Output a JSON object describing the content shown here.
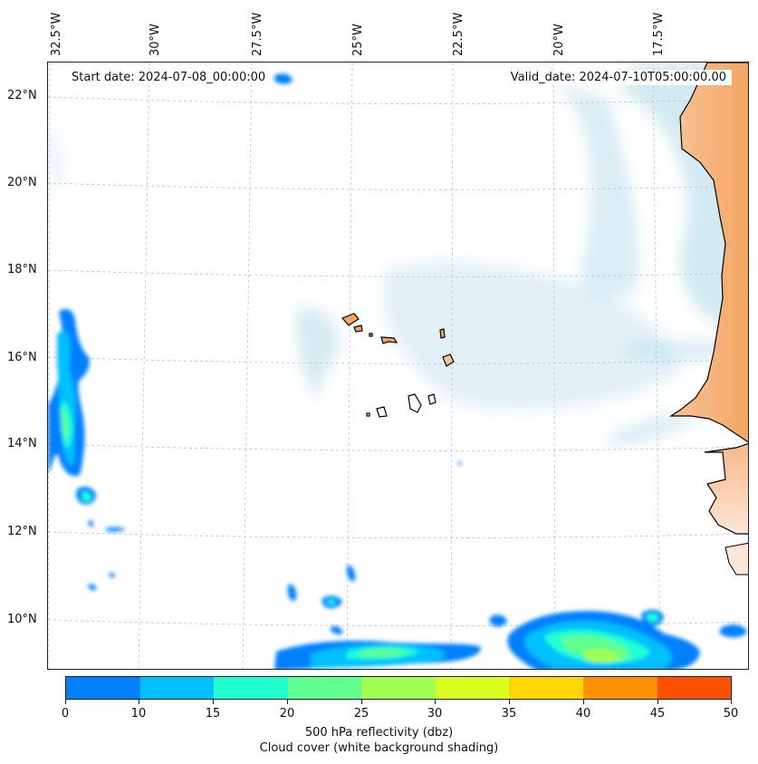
{
  "map": {
    "start_date_label": "Start date: 2024-07-08_00:00:00",
    "valid_date_label": "Valid_date: 2024-07-10T05:00:00.00",
    "longitude_labels": [
      "32.5°W",
      "30°W",
      "27.5°W",
      "25°W",
      "22.5°W",
      "20°W",
      "17.5°W"
    ],
    "latitude_labels": [
      "22°N",
      "20°N",
      "18°N",
      "16°N",
      "14°N",
      "12°N",
      "10°N"
    ],
    "colors": {
      "land": "#f4a460",
      "cloud": "#add8e6",
      "coastline": "#000000",
      "gridline": "#bbbbbb"
    }
  },
  "colorbar": {
    "ticks": [
      "0",
      "10",
      "15",
      "20",
      "25",
      "30",
      "35",
      "40",
      "45",
      "50"
    ],
    "colors": [
      "#0080ff",
      "#00c0ff",
      "#20ffd0",
      "#60ff90",
      "#a0ff50",
      "#d8ff20",
      "#ffd700",
      "#ff9000",
      "#ff5000"
    ],
    "label_line1": "500 hPa reflectivity (dbz)",
    "label_line2": "Cloud cover (white background shading)"
  }
}
